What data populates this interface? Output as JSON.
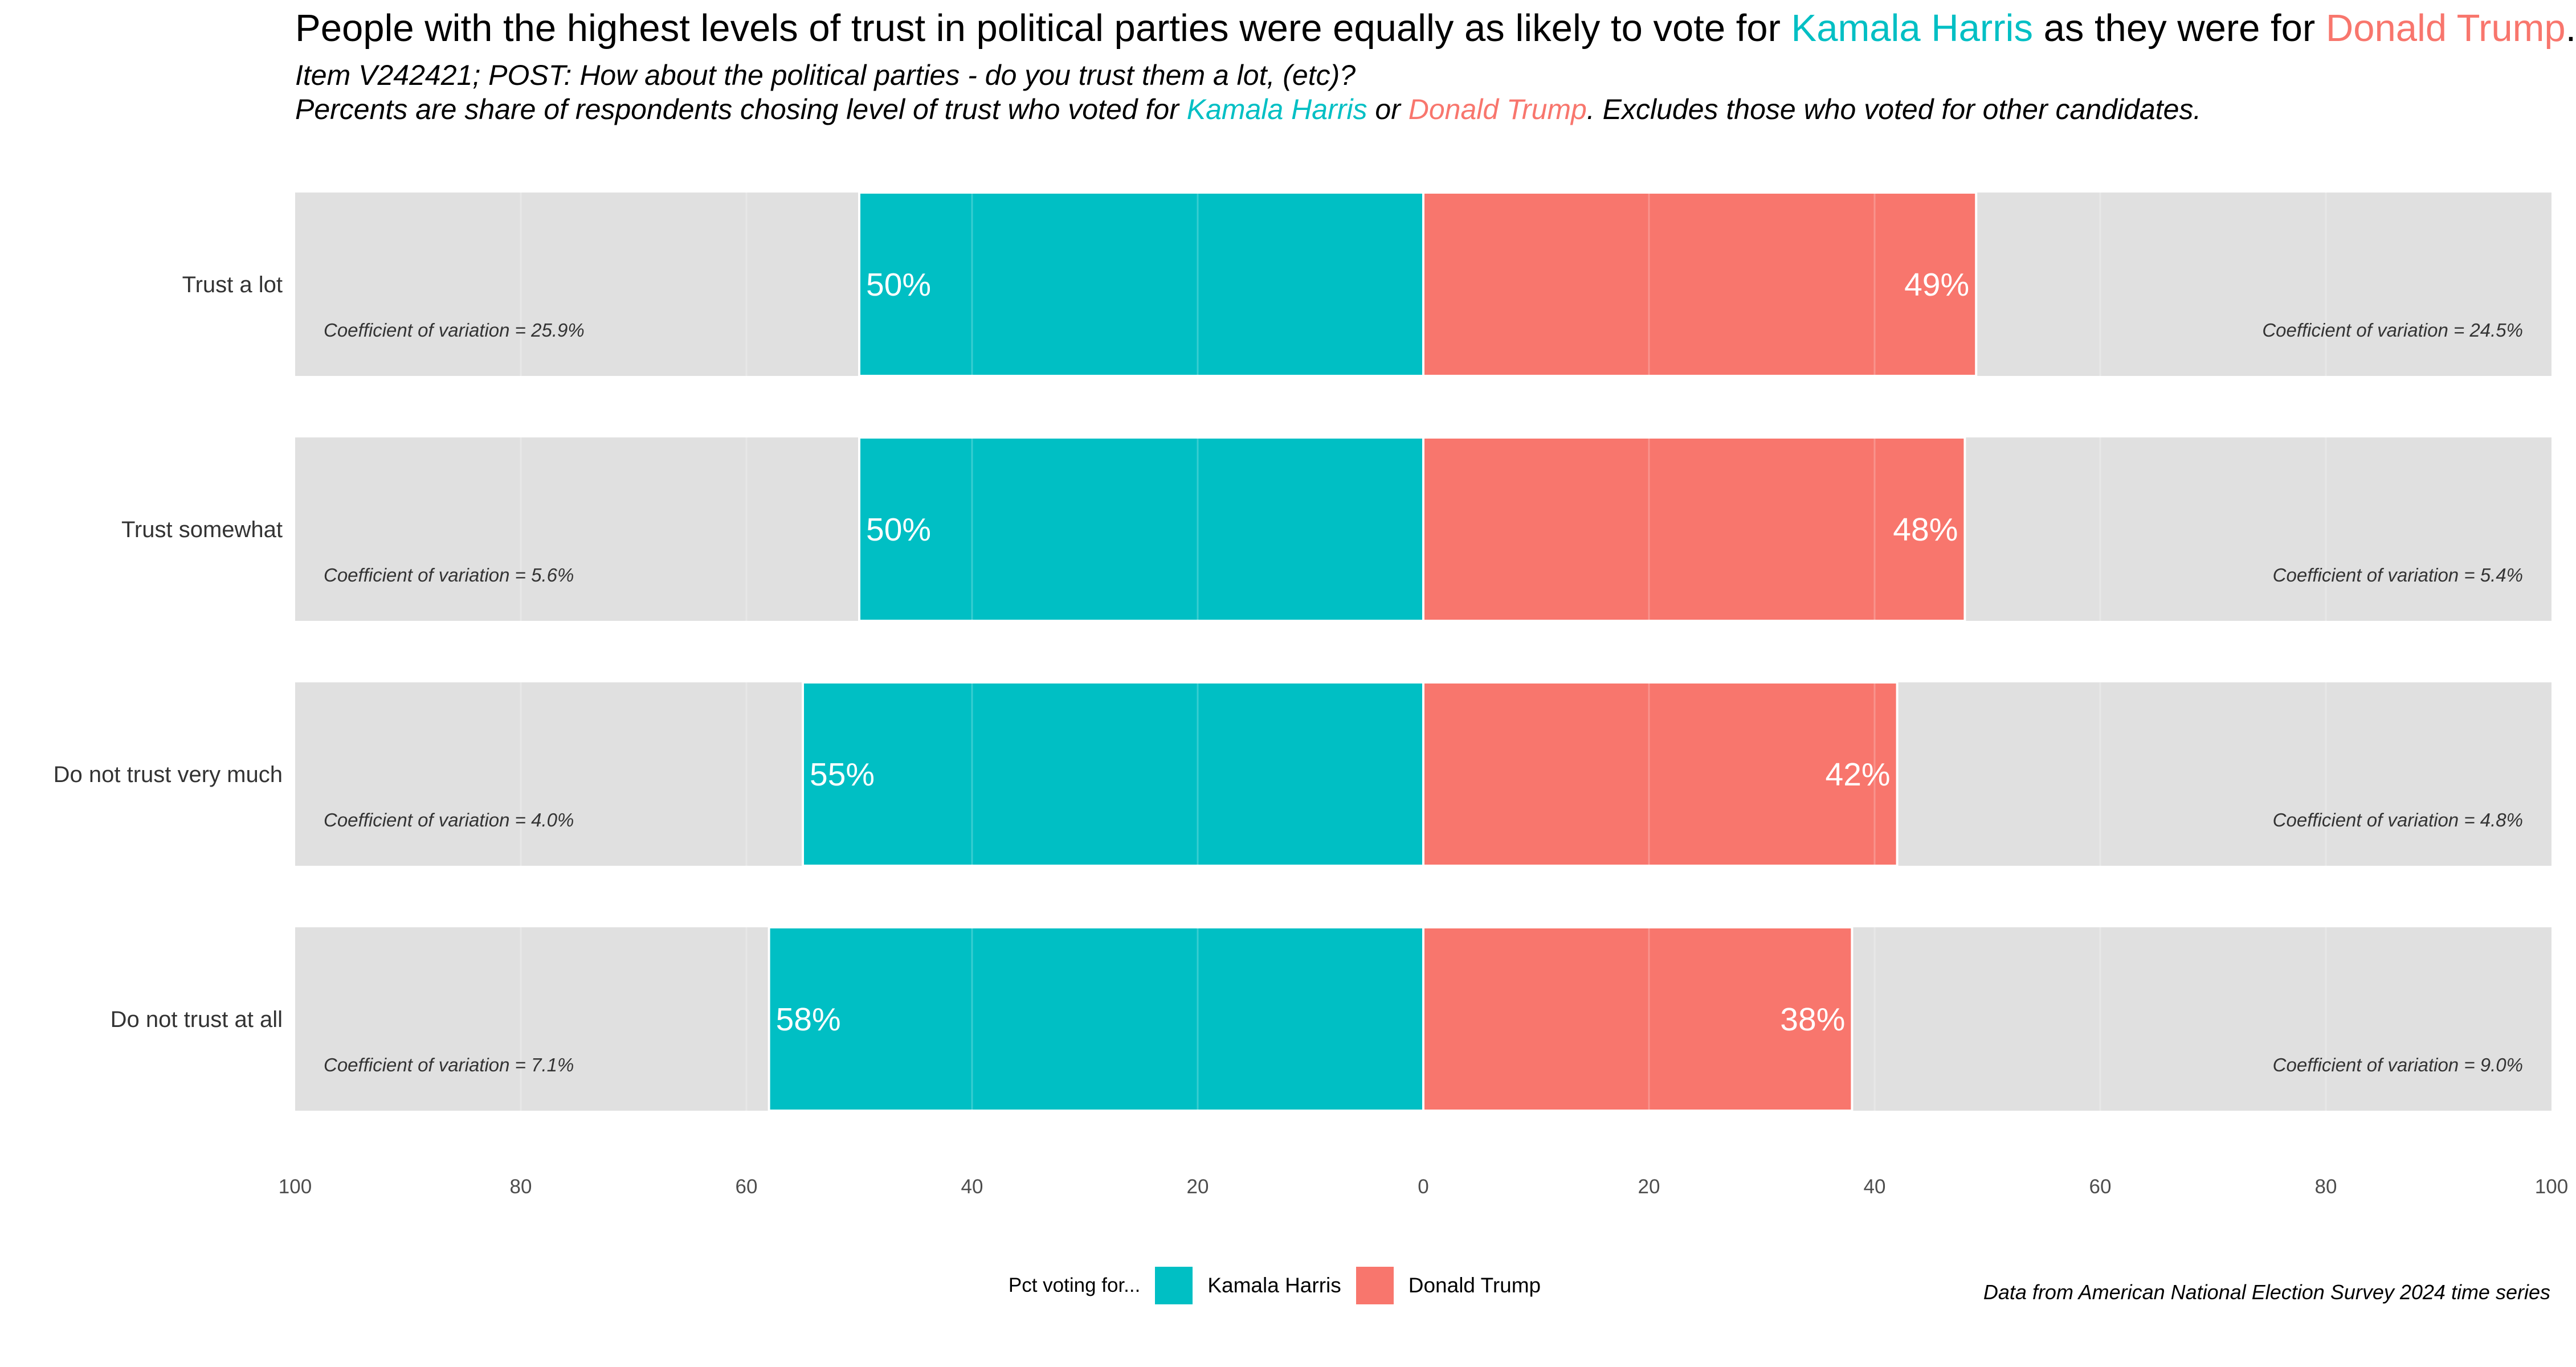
{
  "title": {
    "pre": "People with the highest levels of trust in political parties were equally as likely to vote for ",
    "harris": "Kamala Harris",
    "mid": " as they were for ",
    "trump": "Donald Trump",
    "post": "."
  },
  "subtitle1": "Item V242421; POST: How about the political parties - do you trust them a lot, (etc)?",
  "subtitle2": {
    "pre": "Percents are share of respondents chosing level of trust who voted for ",
    "harris": "Kamala Harris",
    "mid": " or ",
    "trump": "Donald Trump",
    "post": ". Excludes those who voted for other candidates."
  },
  "colors": {
    "harris": "#00BFC4",
    "trump": "#F8766D",
    "panel": "#E0E0E0"
  },
  "legend": {
    "title": "Pct voting for...",
    "harris": "Kamala Harris",
    "trump": "Donald Trump"
  },
  "caption": "Data from American National Election Survey 2024 time series",
  "chart_data": {
    "type": "bar",
    "orientation": "horizontal-diverging",
    "categories": [
      "Trust a lot",
      "Trust somewhat",
      "Do not trust very much",
      "Do not trust at all"
    ],
    "series": [
      {
        "name": "Kamala Harris",
        "values": [
          50,
          50,
          55,
          58
        ],
        "labels": [
          "50%",
          "50%",
          "55%",
          "58%"
        ],
        "cv_labels": [
          "Coefficient of variation = 25.9%",
          "Coefficient of variation = 5.6%",
          "Coefficient of variation = 4.0%",
          "Coefficient of variation = 7.1%"
        ]
      },
      {
        "name": "Donald Trump",
        "values": [
          49,
          48,
          42,
          38
        ],
        "labels": [
          "49%",
          "48%",
          "42%",
          "38%"
        ],
        "cv_labels": [
          "Coefficient of variation = 24.5%",
          "Coefficient of variation = 5.4%",
          "Coefficient of variation = 4.8%",
          "Coefficient of variation = 9.0%"
        ]
      }
    ],
    "x_ticks": [
      -100,
      -80,
      -60,
      -40,
      -20,
      0,
      20,
      40,
      60,
      80,
      100
    ],
    "x_tick_labels": [
      "100",
      "80",
      "60",
      "40",
      "20",
      "0",
      "20",
      "40",
      "60",
      "80",
      "100"
    ],
    "xlim": [
      -100,
      100
    ],
    "grid": true,
    "legend_position": "bottom"
  }
}
